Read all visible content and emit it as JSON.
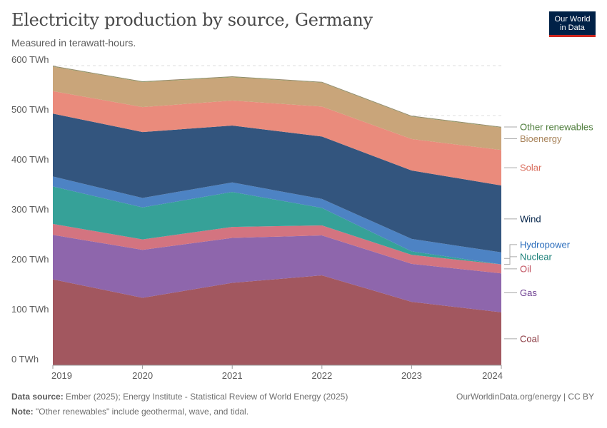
{
  "header": {
    "title": "Electricity production by source, Germany",
    "subtitle": "Measured in terawatt-hours."
  },
  "logo": {
    "line1": "Our World",
    "line2": "in Data"
  },
  "footer": {
    "source_label": "Data source:",
    "source_text": "Ember (2025); Energy Institute - Statistical Review of World Energy (2025)",
    "note_label": "Note:",
    "note_text": "\"Other renewables\" include geothermal, wave, and tidal.",
    "credit": "OurWorldinData.org/energy | CC BY"
  },
  "chart_data": {
    "type": "area",
    "stacked": true,
    "unit": "TWh",
    "x": [
      2019,
      2020,
      2021,
      2022,
      2023,
      2024
    ],
    "ylim": [
      0,
      600
    ],
    "yticks": [
      0,
      100,
      200,
      300,
      400,
      500,
      600
    ],
    "ytick_labels": [
      "0 TWh",
      "100 TWh",
      "200 TWh",
      "300 TWh",
      "400 TWh",
      "500 TWh",
      "600 TWh"
    ],
    "grid": "horizontal-dashed",
    "legend": "right",
    "series": [
      {
        "name": "Coal",
        "color": "#a2575f",
        "label_color": "#8a3840",
        "values": [
          172,
          135,
          165,
          180,
          127,
          106
        ]
      },
      {
        "name": "Gas",
        "color": "#8e66ac",
        "label_color": "#6d3e91",
        "values": [
          89,
          96,
          90,
          80,
          76,
          78
        ]
      },
      {
        "name": "Oil",
        "color": "#d37480",
        "label_color": "#c0505e",
        "values": [
          22,
          21,
          22,
          20,
          18,
          18
        ]
      },
      {
        "name": "Nuclear",
        "color": "#36a198",
        "label_color": "#1a7f78",
        "values": [
          75,
          64,
          70,
          35,
          7,
          0
        ]
      },
      {
        "name": "Hydropower",
        "color": "#4d83c4",
        "label_color": "#286bbb",
        "values": [
          20,
          19,
          19,
          18,
          25,
          24
        ]
      },
      {
        "name": "Wind",
        "color": "#33557e",
        "label_color": "#002147",
        "values": [
          126,
          132,
          114,
          125,
          137,
          134
        ]
      },
      {
        "name": "Solar",
        "color": "#ea8b7c",
        "label_color": "#d96c5b",
        "values": [
          45,
          50,
          50,
          60,
          63,
          71
        ]
      },
      {
        "name": "Bioenergy",
        "color": "#c9a57a",
        "label_color": "#a8835a",
        "values": [
          49,
          50,
          47,
          48,
          45,
          45
        ]
      },
      {
        "name": "Other renewables",
        "color": "#6f9e56",
        "label_color": "#4d7c3a",
        "values": [
          1,
          1,
          1,
          1,
          1,
          1
        ]
      }
    ]
  }
}
